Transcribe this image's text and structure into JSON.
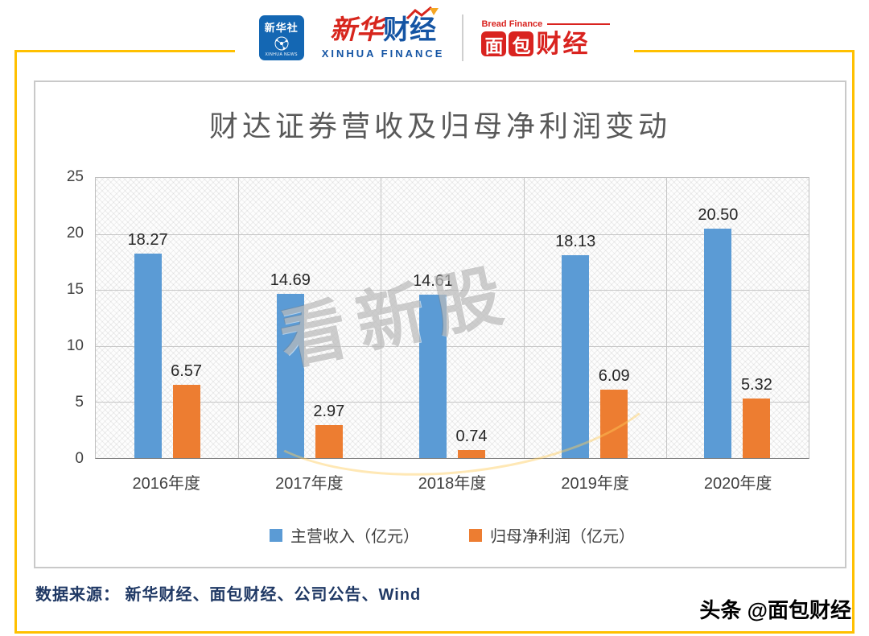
{
  "header": {
    "xinhua_news": {
      "label": "新华社",
      "sub": "XINHUA NEWS"
    },
    "xinhua_finance": {
      "part1": "新华",
      "part2": "财经",
      "sub": "XINHUA FINANCE"
    },
    "bread_finance": {
      "sub": "Bread Finance",
      "char1": "面",
      "char2": "包",
      "rest": "财经"
    }
  },
  "chart_data": {
    "type": "bar",
    "title": "财达证券营收及归母净利润变动",
    "categories": [
      "2016年度",
      "2017年度",
      "2018年度",
      "2019年度",
      "2020年度"
    ],
    "series": [
      {
        "name": "主营收入（亿元）",
        "color": "#5B9BD5",
        "values": [
          18.27,
          14.69,
          14.61,
          18.13,
          20.5
        ]
      },
      {
        "name": "归母净利润（亿元）",
        "color": "#ED7D31",
        "values": [
          6.57,
          2.97,
          0.74,
          6.09,
          5.32
        ]
      }
    ],
    "xlabel": "",
    "ylabel": "",
    "ylim": [
      0,
      25
    ],
    "yticks": [
      25,
      20,
      15,
      10,
      5,
      0
    ],
    "grid": true,
    "legend_position": "bottom",
    "watermark": "看新股"
  },
  "footer": {
    "source": "数据来源： 新华财经、面包财经、公司公告、Wind",
    "credit": "头条 @面包财经"
  },
  "colors": {
    "frame": "#FFC000",
    "revenue": "#5B9BD5",
    "profit": "#ED7D31"
  }
}
